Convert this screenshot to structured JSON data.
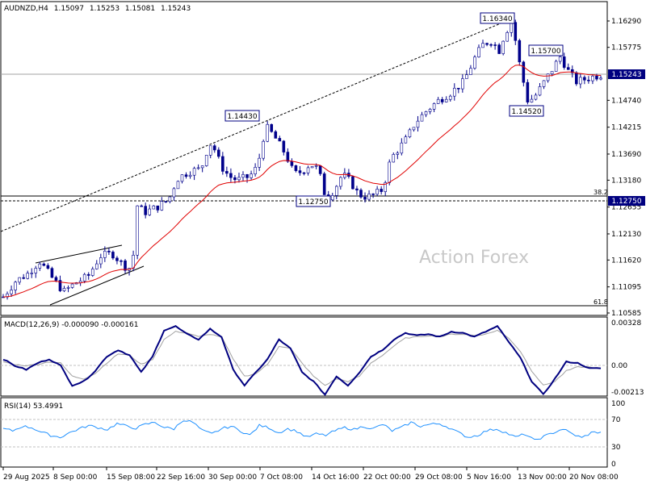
{
  "header": {
    "symbol": "AUDNZD,H4",
    "open": "1.15097",
    "high": "1.15253",
    "low": "1.15081",
    "close": "1.15243"
  },
  "watermark": "Action Forex",
  "colors": {
    "background": "#ffffff",
    "candle": "#00008b",
    "moving_average": "#e00000",
    "macd": "#000080",
    "signal": "#a0a0a0",
    "rsi": "#1e90ff",
    "price_tag_bg": "#000080",
    "annotation_border": "#000080",
    "watermark": "#c8c8c8"
  },
  "icons": {
    "chart_type": "candlestick-chart"
  },
  "chart_data": [
    {
      "type": "candlestick",
      "ylim": [
        1.10585,
        1.1629
      ],
      "yticks": [
        "1.16290",
        "1.15775",
        "1.14740",
        "1.14215",
        "1.13690",
        "1.13180",
        "1.12655",
        "1.12130",
        "1.11620",
        "1.11095",
        "1.10585"
      ],
      "current_price_tag": "1.15243",
      "fib_level_price_tag": "1.12750",
      "xtick_labels": [
        "29 Aug 2025",
        "8 Sep 00:00",
        "15 Sep 08:00",
        "22 Sep 16:00",
        "30 Sep 00:00",
        "7 Oct 08:00",
        "14 Oct 16:00",
        "22 Oct 00:00",
        "29 Oct 08:00",
        "5 Nov 16:00",
        "13 Nov 00:00",
        "20 Nov 08:00"
      ],
      "annotations": [
        {
          "label": "1.16340",
          "value": 1.1634
        },
        {
          "label": "1.15700",
          "value": 1.157
        },
        {
          "label": "1.14430",
          "value": 1.1443
        },
        {
          "label": "1.14520",
          "value": 1.1452
        },
        {
          "label": "1.12750",
          "value": 1.1275
        }
      ],
      "fib_levels": [
        {
          "label": "38.2",
          "value": 1.1275
        },
        {
          "label": "61.8",
          "value": 1.1071
        }
      ],
      "trend_channel_line": [
        [
          0,
          1.1245
        ],
        [
          122,
          1.1634
        ]
      ],
      "triangle_lines": [
        {
          "from": [
            8,
            1.1155
          ],
          "to": [
            29,
            1.1183
          ]
        },
        {
          "from": [
            11,
            1.1076
          ],
          "to": [
            34,
            1.1155
          ]
        }
      ],
      "price_path": [
        [
          0,
          1.109
        ],
        [
          3,
          1.112
        ],
        [
          6,
          1.1135
        ],
        [
          9,
          1.116
        ],
        [
          12,
          1.1128
        ],
        [
          15,
          1.11
        ],
        [
          18,
          1.1118
        ],
        [
          21,
          1.113
        ],
        [
          24,
          1.117
        ],
        [
          27,
          1.1175
        ],
        [
          30,
          1.115
        ],
        [
          32,
          1.1145
        ],
        [
          33,
          1.127
        ],
        [
          35,
          1.1255
        ],
        [
          38,
          1.1265
        ],
        [
          41,
          1.128
        ],
        [
          43,
          1.132
        ],
        [
          46,
          1.1335
        ],
        [
          49,
          1.134
        ],
        [
          51,
          1.139
        ],
        [
          52,
          1.1385
        ],
        [
          54,
          1.1345
        ],
        [
          56,
          1.1325
        ],
        [
          58,
          1.1318
        ],
        [
          61,
          1.1325
        ],
        [
          63,
          1.1345
        ],
        [
          65,
          1.1423
        ],
        [
          67,
          1.1405
        ],
        [
          70,
          1.1368
        ],
        [
          72,
          1.133
        ],
        [
          74,
          1.1335
        ],
        [
          76,
          1.135
        ],
        [
          78,
          1.134
        ],
        [
          80,
          1.128
        ],
        [
          82,
          1.13
        ],
        [
          84,
          1.133
        ],
        [
          86,
          1.1315
        ],
        [
          88,
          1.129
        ],
        [
          90,
          1.1285
        ],
        [
          92,
          1.129
        ],
        [
          94,
          1.13
        ],
        [
          96,
          1.136
        ],
        [
          98,
          1.138
        ],
        [
          100,
          1.14
        ],
        [
          102,
          1.143
        ],
        [
          105,
          1.1455
        ],
        [
          108,
          1.1475
        ],
        [
          111,
          1.149
        ],
        [
          114,
          1.151
        ],
        [
          117,
          1.156
        ],
        [
          119,
          1.1585
        ],
        [
          121,
          1.159
        ],
        [
          123,
          1.157
        ],
        [
          124,
          1.16
        ],
        [
          126,
          1.163
        ],
        [
          128,
          1.154
        ],
        [
          130,
          1.147
        ],
        [
          132,
          1.1485
        ],
        [
          134,
          1.151
        ],
        [
          136,
          1.1535
        ],
        [
          138,
          1.156
        ],
        [
          140,
          1.153
        ],
        [
          142,
          1.151
        ],
        [
          144,
          1.1515
        ],
        [
          146,
          1.152
        ],
        [
          148,
          1.1524
        ]
      ],
      "moving_average_end": 1.1515
    },
    {
      "type": "line",
      "title": "MACD(12,26,9) -0.000090 -0.000161",
      "ylim": [
        -0.00213,
        0.00328
      ],
      "yticks": [
        "0.00328",
        "0.00",
        "-0.00213"
      ],
      "series": [
        {
          "values": [
            0.0005,
            0.0,
            -0.0003,
            0.0002,
            0.0005,
            0.0,
            -0.0015,
            -0.0012,
            -0.0004,
            0.0007,
            0.0012,
            0.0008,
            -0.0005,
            0.0007,
            0.0027,
            0.003,
            0.0024,
            0.002,
            0.0028,
            0.0022,
            -0.0003,
            -0.0015,
            -0.0005,
            0.0005,
            0.002,
            0.0013,
            -0.0005,
            -0.0012,
            -0.0022,
            -0.0008,
            -0.0015,
            -0.0005,
            0.0007,
            0.0012,
            0.002,
            0.0025,
            0.0023,
            0.0024,
            0.0022,
            0.0026,
            0.0025,
            0.0022,
            0.0026,
            0.003,
            0.0018,
            0.0006,
            -0.0012,
            -0.0022,
            -0.001,
            0.0003,
            0.0002,
            -0.0002,
            -0.0002
          ]
        },
        {
          "values": [
            0.0003,
            0.0001,
            0.0,
            0.0001,
            0.0003,
            0.0002,
            -0.0008,
            -0.001,
            -0.0006,
            0.0002,
            0.0009,
            0.0008,
            0.0001,
            0.0005,
            0.002,
            0.0026,
            0.0025,
            0.0022,
            0.0024,
            0.0022,
            0.0005,
            -0.0008,
            -0.0006,
            0.0001,
            0.0015,
            0.0013,
            0.0002,
            -0.0008,
            -0.0015,
            -0.001,
            -0.0012,
            -0.0008,
            0.0002,
            0.0008,
            0.0015,
            0.0021,
            0.0022,
            0.0023,
            0.0022,
            0.0024,
            0.0024,
            0.0023,
            0.0024,
            0.0027,
            0.0021,
            0.0011,
            -0.0004,
            -0.0015,
            -0.0012,
            -0.0004,
            -0.0001,
            -0.0001,
            -0.0002
          ]
        }
      ]
    },
    {
      "type": "line",
      "title": "RSI(14) 53.4991",
      "ylim": [
        0,
        100
      ],
      "yticks": [
        "100",
        "70",
        "30",
        "0"
      ],
      "reference_levels": [
        70,
        30
      ],
      "series": [
        {
          "values": [
            58,
            55,
            62,
            60,
            53,
            48,
            45,
            52,
            58,
            63,
            60,
            57,
            66,
            62,
            59,
            65,
            68,
            60,
            58,
            72,
            68,
            55,
            50,
            58,
            62,
            55,
            48,
            63,
            60,
            52,
            58,
            54,
            45,
            50,
            48,
            55,
            60,
            57,
            62,
            58,
            65,
            55,
            60,
            68,
            62,
            65,
            66,
            60,
            52,
            45,
            48,
            55,
            58,
            52,
            45,
            50,
            40,
            46,
            52,
            58,
            50,
            44,
            52,
            53
          ]
        }
      ]
    }
  ]
}
